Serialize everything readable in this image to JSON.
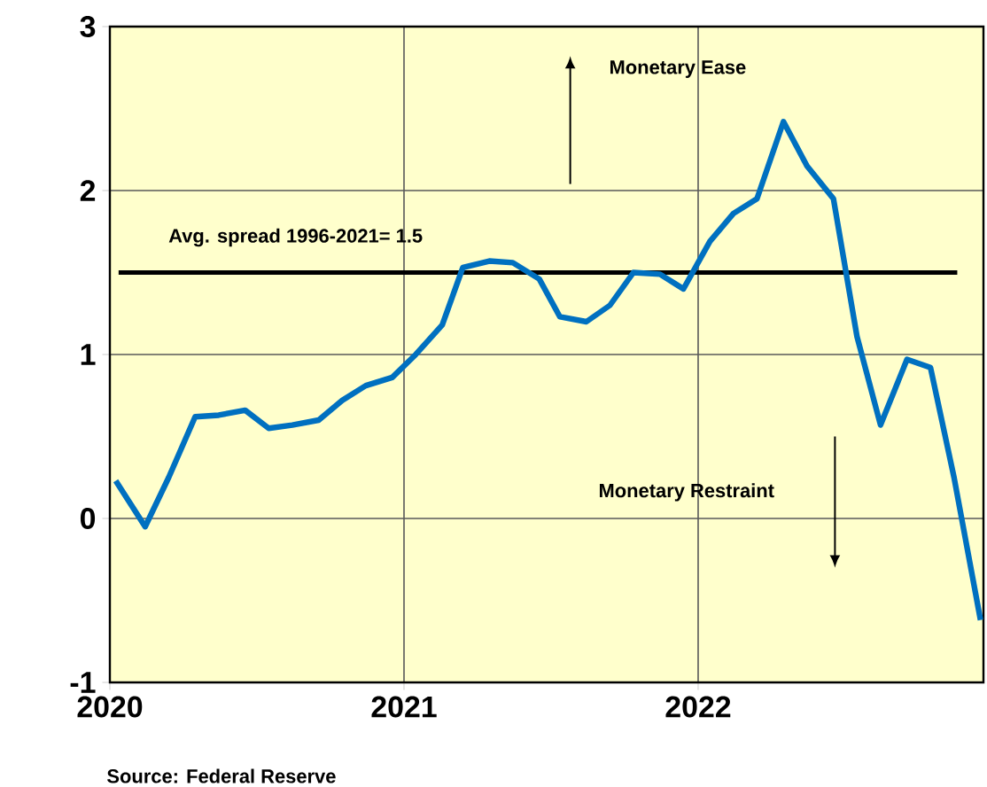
{
  "chart_data": {
    "type": "line",
    "x": [
      2020.02,
      2020.12,
      2020.2,
      2020.29,
      2020.37,
      2020.46,
      2020.54,
      2020.62,
      2020.71,
      2020.79,
      2020.87,
      2020.96,
      2021.04,
      2021.13,
      2021.2,
      2021.29,
      2021.37,
      2021.46,
      2021.53,
      2021.62,
      2021.7,
      2021.78,
      2021.87,
      2021.95,
      2022.04,
      2022.12,
      2022.2,
      2022.29,
      2022.37,
      2022.46,
      2022.54,
      2022.62,
      2022.71,
      2022.79,
      2022.87,
      2022.96
    ],
    "series": [
      {
        "color": "#0070c0",
        "values": [
          0.23,
          -0.05,
          0.25,
          0.62,
          0.63,
          0.66,
          0.55,
          0.57,
          0.6,
          0.72,
          0.81,
          0.86,
          1.0,
          1.18,
          1.53,
          1.57,
          1.56,
          1.46,
          1.23,
          1.2,
          1.3,
          1.5,
          1.49,
          1.4,
          1.69,
          1.86,
          1.95,
          2.42,
          2.15,
          1.95,
          1.11,
          0.57,
          0.97,
          0.92,
          0.25,
          -0.62
        ]
      }
    ],
    "xlim": [
      2020,
      2022.97
    ],
    "xticks": [
      2020,
      2021,
      2022
    ],
    "ylim": [
      -1,
      3
    ],
    "yticks": [
      -1,
      0,
      1,
      2,
      3
    ],
    "grid": true,
    "ref_lines": [
      {
        "axis": "y",
        "value": 1.5,
        "label": "Avg. spread 1996-2021= 1.5",
        "color": "#000000"
      }
    ],
    "annotations": [
      "Monetary Ease",
      "Monetary Restraint",
      "Source: Federal Reserve"
    ]
  }
}
